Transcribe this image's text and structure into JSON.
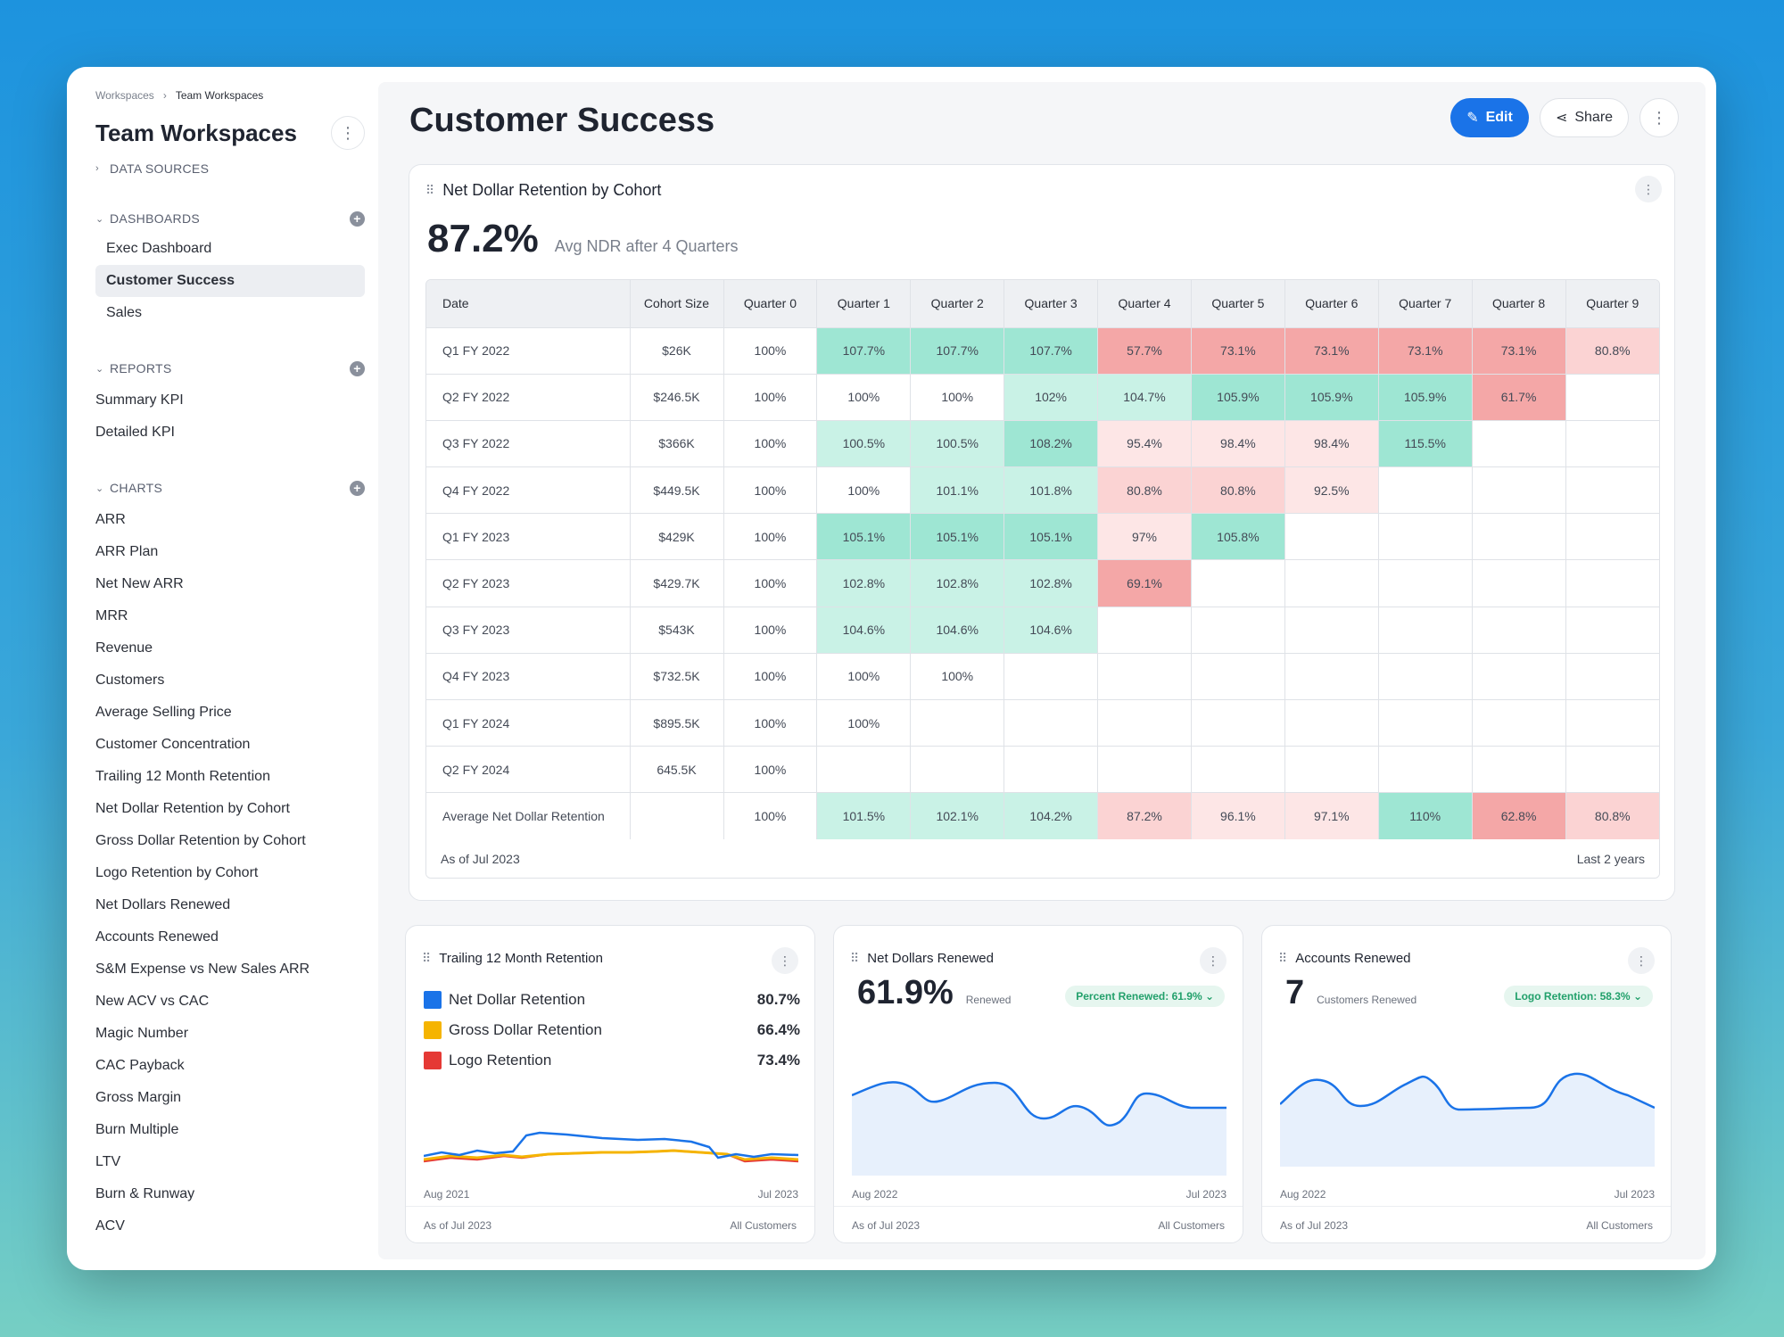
{
  "sidebar": {
    "breadcrumb": [
      "Workspaces",
      "Team Workspaces"
    ],
    "title": "Team Workspaces",
    "data_sources_label": "DATA SOURCES",
    "dashboards_label": "DASHBOARDS",
    "dashboards": [
      "Exec Dashboard",
      "Customer Success",
      "Sales"
    ],
    "active_dashboard": "Customer Success",
    "reports_label": "REPORTS",
    "reports": [
      "Summary KPI",
      "Detailed KPI"
    ],
    "charts_label": "CHARTS",
    "charts": [
      "ARR",
      "ARR Plan",
      "Net New ARR",
      "MRR",
      "Revenue",
      "Customers",
      "Average Selling Price",
      "Customer Concentration",
      "Trailing 12 Month Retention",
      "Net Dollar Retention by Cohort",
      "Gross Dollar Retention by Cohort",
      "Logo Retention by Cohort",
      "Net Dollars Renewed",
      "Accounts Renewed",
      "S&M Expense vs New Sales ARR",
      "New ACV vs CAC",
      "Magic Number",
      "CAC Payback",
      "Gross Margin",
      "Burn Multiple",
      "LTV",
      "Burn & Runway",
      "ACV"
    ]
  },
  "header": {
    "title": "Customer Success",
    "edit_label": "Edit",
    "share_label": "Share"
  },
  "cohort_card": {
    "title": "Net Dollar Retention by Cohort",
    "kpi_value": "87.2%",
    "kpi_label": "Avg NDR after 4 Quarters",
    "columns": [
      "Date",
      "Cohort Size",
      "Quarter 0",
      "Quarter 1",
      "Quarter 2",
      "Quarter 3",
      "Quarter 4",
      "Quarter 5",
      "Quarter 6",
      "Quarter 7",
      "Quarter 8",
      "Quarter 9"
    ],
    "rows": [
      {
        "date": "Q1 FY 2022",
        "size": "$26K",
        "values": [
          "100%",
          "107.7%",
          "107.7%",
          "107.7%",
          "57.7%",
          "73.1%",
          "73.1%",
          "73.1%",
          "73.1%",
          "80.8%"
        ]
      },
      {
        "date": "Q2 FY 2022",
        "size": "$246.5K",
        "values": [
          "100%",
          "100%",
          "100%",
          "102%",
          "104.7%",
          "105.9%",
          "105.9%",
          "105.9%",
          "61.7%",
          ""
        ]
      },
      {
        "date": "Q3 FY 2022",
        "size": "$366K",
        "values": [
          "100%",
          "100.5%",
          "100.5%",
          "108.2%",
          "95.4%",
          "98.4%",
          "98.4%",
          "115.5%",
          "",
          ""
        ]
      },
      {
        "date": "Q4 FY 2022",
        "size": "$449.5K",
        "values": [
          "100%",
          "100%",
          "101.1%",
          "101.8%",
          "80.8%",
          "80.8%",
          "92.5%",
          "",
          "",
          ""
        ]
      },
      {
        "date": "Q1 FY 2023",
        "size": "$429K",
        "values": [
          "100%",
          "105.1%",
          "105.1%",
          "105.1%",
          "97%",
          "105.8%",
          "",
          "",
          "",
          ""
        ]
      },
      {
        "date": "Q2 FY 2023",
        "size": "$429.7K",
        "values": [
          "100%",
          "102.8%",
          "102.8%",
          "102.8%",
          "69.1%",
          "",
          "",
          "",
          "",
          ""
        ]
      },
      {
        "date": "Q3 FY 2023",
        "size": "$543K",
        "values": [
          "100%",
          "104.6%",
          "104.6%",
          "104.6%",
          "",
          "",
          "",
          "",
          "",
          ""
        ]
      },
      {
        "date": "Q4 FY 2023",
        "size": "$732.5K",
        "values": [
          "100%",
          "100%",
          "100%",
          "",
          "",
          "",
          "",
          "",
          "",
          ""
        ]
      },
      {
        "date": "Q1 FY 2024",
        "size": "$895.5K",
        "values": [
          "100%",
          "100%",
          "",
          "",
          "",
          "",
          "",
          "",
          "",
          ""
        ]
      },
      {
        "date": "Q2 FY 2024",
        "size": "645.5K",
        "values": [
          "100%",
          "",
          "",
          "",
          "",
          "",
          "",
          "",
          "",
          ""
        ]
      },
      {
        "date": "Average Net Dollar Retention",
        "size": "",
        "values": [
          "100%",
          "101.5%",
          "102.1%",
          "104.2%",
          "87.2%",
          "96.1%",
          "97.1%",
          "110%",
          "62.8%",
          "80.8%"
        ]
      }
    ],
    "as_of": "As of Jul 2023",
    "range": "Last 2 years"
  },
  "trailing_card": {
    "title": "Trailing 12 Month Retention",
    "legend": [
      {
        "name": "Net Dollar Retention",
        "value": "80.7%",
        "color": "#1a73e8"
      },
      {
        "name": "Gross Dollar Retention",
        "value": "66.4%",
        "color": "#f5b400"
      },
      {
        "name": "Logo Retention",
        "value": "73.4%",
        "color": "#e53935"
      }
    ],
    "x_start": "Aug 2021",
    "x_end": "Jul 2023",
    "as_of": "As of Jul 2023",
    "scope": "All Customers"
  },
  "dollars_card": {
    "title": "Net Dollars Renewed",
    "kpi_value": "61.9%",
    "kpi_label": "Renewed",
    "pill": "Percent Renewed: 61.9% ⌄",
    "x_start": "Aug 2022",
    "x_end": "Jul 2023",
    "as_of": "As of Jul 2023",
    "scope": "All Customers"
  },
  "accounts_card": {
    "title": "Accounts Renewed",
    "kpi_value": "7",
    "kpi_label": "Customers Renewed",
    "pill": "Logo Retention: 58.3% ⌄",
    "x_start": "Aug 2022",
    "x_end": "Jul 2023",
    "as_of": "As of Jul 2023",
    "scope": "All Customers"
  },
  "colors": {
    "accent": "#1a73e8",
    "green_strong": "#9ee6d3",
    "green_light": "#c9f2e6",
    "red_strong": "#f4a7a7",
    "red_light": "#fbd3d3",
    "red_faint": "#fde6e6"
  }
}
